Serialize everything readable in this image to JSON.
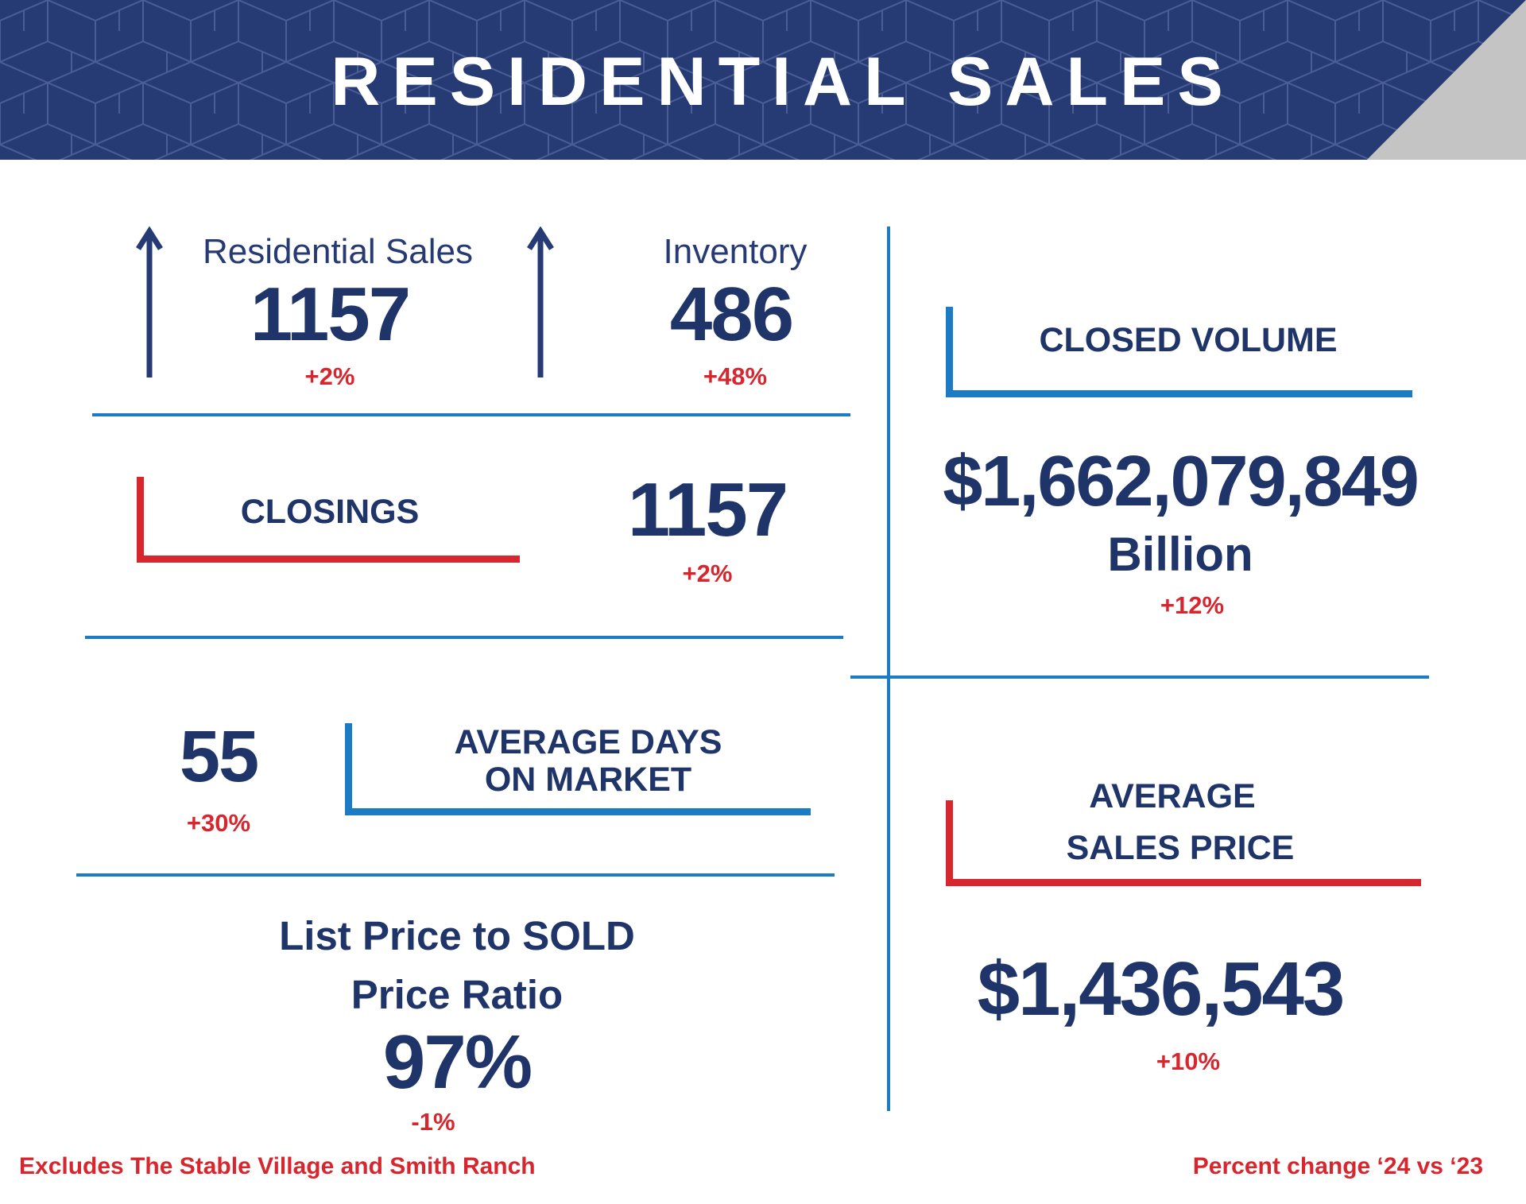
{
  "header": {
    "title": "RESIDENTIAL SALES"
  },
  "residential_sales": {
    "label": "Residential Sales",
    "value": "1157",
    "change": "+2%",
    "arrow_icon": "arrow-up-icon"
  },
  "inventory": {
    "label": "Inventory",
    "value": "486",
    "change": "+48%",
    "arrow_icon": "arrow-up-icon"
  },
  "closings": {
    "label": "CLOSINGS",
    "value": "1157",
    "change": "+2%"
  },
  "days_on_market": {
    "value": "55",
    "change": "+30%",
    "label_line1": "AVERAGE DAYS",
    "label_line2": "ON MARKET"
  },
  "price_ratio": {
    "label_line1": "List Price to SOLD",
    "label_line2": "Price Ratio",
    "value": "97%",
    "change": "-1%"
  },
  "closed_volume": {
    "label": "CLOSED VOLUME",
    "value": "$1,662,079,849",
    "unit": "Billion",
    "change": "+12%"
  },
  "average_sales_price": {
    "label_line1": "AVERAGE",
    "label_line2": "SALES PRICE",
    "value": "$1,436,543",
    "change": "+10%"
  },
  "footer": {
    "note_left": "Excludes The Stable Village and Smith Ranch",
    "note_right": "Percent change ‘24 vs ‘23"
  },
  "colors": {
    "navy": "#263a74",
    "text_navy": "#1f3468",
    "red": "#d8262f",
    "blue": "#1b7bc4",
    "gray": "#c4c4c4"
  }
}
